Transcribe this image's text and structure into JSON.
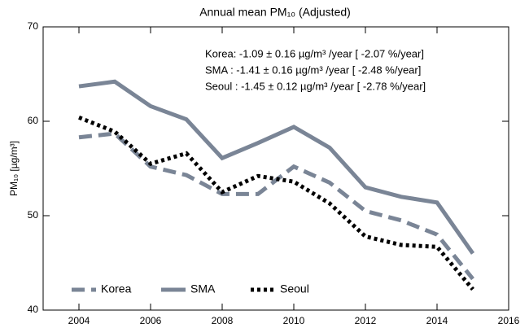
{
  "chart_data": {
    "type": "line",
    "title": "Annual mean PM₁₀ (Adjusted)",
    "y_label": "PM₁₀ [µg/m³]",
    "annotations": [
      "Korea: -1.09 ± 0.16 µg/m³ /year [ -2.07 %/year]",
      "SMA  : -1.41 ± 0.16 µg/m³ /year [ -2.48 %/year]",
      "Seoul : -1.45 ± 0.12 µg/m³ /year [ -2.78 %/year]"
    ],
    "x": [
      2004,
      2005,
      2006,
      2007,
      2008,
      2009,
      2010,
      2011,
      2012,
      2013,
      2014,
      2015
    ],
    "series": [
      {
        "name": "Korea",
        "color": "#7a8596",
        "dash": "dashed",
        "values": [
          58.3,
          58.7,
          55.2,
          54.3,
          52.3,
          52.3,
          55.2,
          53.5,
          50.5,
          49.5,
          48.0,
          43.3
        ]
      },
      {
        "name": "SMA",
        "color": "#7a8596",
        "dash": "solid",
        "values": [
          63.7,
          64.2,
          61.6,
          60.2,
          56.1,
          57.7,
          59.4,
          57.2,
          53.0,
          52.0,
          51.4,
          46.0
        ]
      },
      {
        "name": "Seoul",
        "color": "#000000",
        "dash": "dotted",
        "values": [
          60.4,
          58.9,
          55.5,
          56.6,
          52.5,
          54.2,
          53.6,
          51.3,
          47.8,
          46.9,
          46.7,
          42.2
        ]
      }
    ],
    "xlim": [
      2003,
      2016
    ],
    "xticks": [
      2004,
      2006,
      2008,
      2010,
      2012,
      2014,
      2016
    ],
    "ylim": [
      40,
      70
    ],
    "yticks": [
      40,
      50,
      60,
      70
    ],
    "legend": "lower left"
  }
}
